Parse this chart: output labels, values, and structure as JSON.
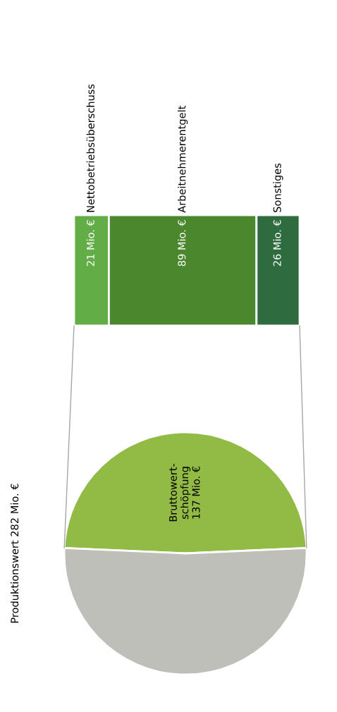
{
  "chart_data": [
    {
      "type": "bar",
      "orientation": "horizontal",
      "stacked": true,
      "categories": [
        null
      ],
      "series": [
        {
          "name": "Nettobetriebsüberschuss",
          "color": "#62ad45",
          "values": [
            21
          ],
          "value_labels": [
            "21 Mio. €"
          ]
        },
        {
          "name": "Arbeitnehmerentgelt",
          "color": "#4a872d",
          "values": [
            89
          ],
          "value_labels": [
            "89 Mio. €"
          ]
        },
        {
          "name": "Sonstiges",
          "color": "#2e6b3f",
          "values": [
            26
          ],
          "value_labels": [
            "26 Mio. €"
          ]
        }
      ]
    },
    {
      "type": "pie",
      "title": "Produktionswert 282 Mio. €",
      "categories": [
        "Bruttowert-\nschöpfung",
        null
      ],
      "values": [
        137,
        145
      ],
      "colors": [
        "#92bb45",
        "#bfbfba"
      ],
      "value_labels": [
        "137 Mio. €",
        null
      ]
    }
  ]
}
